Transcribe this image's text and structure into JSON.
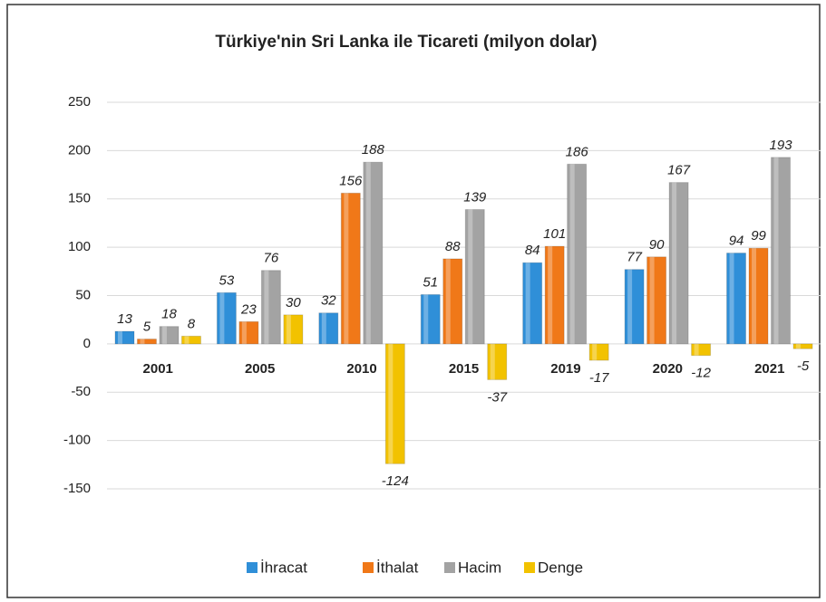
{
  "chart_data": {
    "type": "bar",
    "title": "Türkiye'nin Sri Lanka ile Ticareti (milyon dolar)",
    "categories": [
      "2001",
      "2005",
      "2010",
      "2015",
      "2019",
      "2020",
      "2021"
    ],
    "series": [
      {
        "name": "İhracat",
        "color": "#2f8fd8",
        "values": [
          13,
          53,
          32,
          51,
          84,
          77,
          94
        ]
      },
      {
        "name": "İthalat",
        "color": "#f07818",
        "values": [
          5,
          23,
          156,
          88,
          101,
          90,
          99
        ]
      },
      {
        "name": "Hacim",
        "color": "#a3a3a3",
        "values": [
          18,
          76,
          188,
          139,
          186,
          167,
          193
        ]
      },
      {
        "name": "Denge",
        "color": "#f2c200",
        "values": [
          8,
          30,
          -124,
          -37,
          -17,
          -12,
          -5
        ]
      }
    ],
    "ylim": [
      -150,
      250
    ],
    "yticks": [
      -150,
      -100,
      -50,
      0,
      50,
      100,
      150,
      200,
      250
    ],
    "grid": true,
    "legend": "bottom"
  }
}
